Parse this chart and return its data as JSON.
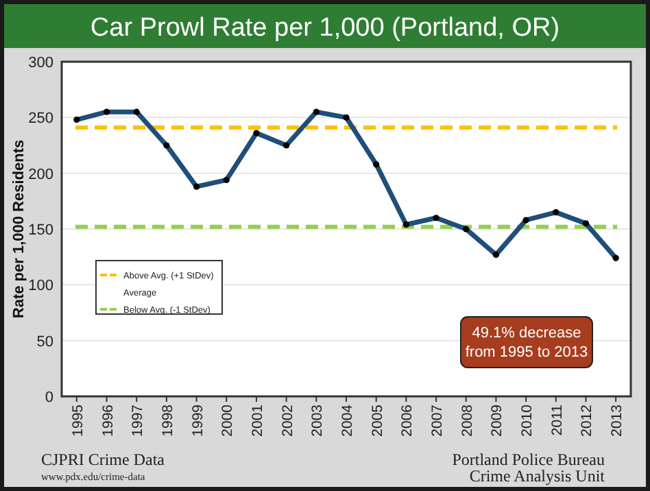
{
  "chart_data": {
    "type": "line",
    "title": "Car Prowl Rate per 1,000 (Portland, OR)",
    "ylabel": "Rate per 1,000 Residents",
    "categories": [
      "1995",
      "1996",
      "1997",
      "1998",
      "1999",
      "2000",
      "2001",
      "2002",
      "2003",
      "2004",
      "2005",
      "2006",
      "2007",
      "2008",
      "2009",
      "2010",
      "2011",
      "2012",
      "2013"
    ],
    "series": [
      {
        "color": "#1f4e79",
        "values": [
          248,
          255,
          255,
          225,
          188,
          194,
          236,
          225,
          255,
          250,
          208,
          154,
          160,
          150,
          127,
          158,
          165,
          155,
          124
        ]
      }
    ],
    "ylim": [
      0,
      300
    ],
    "yticks": [
      0,
      50,
      100,
      150,
      200,
      250,
      300
    ],
    "grid": "y",
    "marker": "circle",
    "line_style": "solid",
    "legend": "left",
    "ref_lines": [
      {
        "axis": "y",
        "value": 241,
        "label": "Above Avg. (+1 StDev)",
        "color": "#ffc000",
        "line_style": "dashed"
      },
      {
        "axis": "y",
        "value": 152,
        "label": "Below Avg. (-1 StDev)",
        "color": "#92d050",
        "line_style": "dashed"
      }
    ],
    "annotations": [
      "49.1% decrease\nfrom 1995 to 2013",
      "Average",
      "CJPRI Crime Data",
      "www.pdx.edu/crime-data",
      "Portland Police Bureau",
      "Crime Analysis Unit"
    ]
  }
}
